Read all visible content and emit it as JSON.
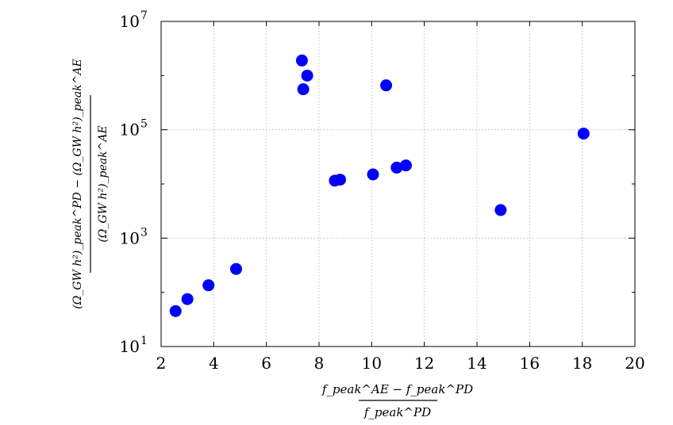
{
  "chart_data": {
    "type": "scatter",
    "title": "",
    "xlabel": {
      "numerator": "f_peak^AE − f_peak^PD",
      "denominator": "f_peak^PD"
    },
    "ylabel": {
      "numerator": "(Ω_GW h²)_peak^PD − (Ω_GW h²)_peak^AE",
      "denominator": "(Ω_GW h²)_peak^AE"
    },
    "xlim": [
      2,
      20
    ],
    "ylim": [
      10,
      10000000
    ],
    "yscale": "log",
    "grid": true,
    "x_ticks": [
      2,
      4,
      6,
      8,
      10,
      12,
      14,
      16,
      18,
      20
    ],
    "y_ticks": [
      {
        "base": "10",
        "exp": "1",
        "value": 10
      },
      {
        "base": "10",
        "exp": "3",
        "value": 1000
      },
      {
        "base": "10",
        "exp": "5",
        "value": 100000
      },
      {
        "base": "10",
        "exp": "7",
        "value": 10000000
      }
    ],
    "marker_color": "#0000ff",
    "points": [
      {
        "x": 2.55,
        "y": 45
      },
      {
        "x": 3.0,
        "y": 75
      },
      {
        "x": 3.8,
        "y": 135
      },
      {
        "x": 4.85,
        "y": 270
      },
      {
        "x": 7.35,
        "y": 1900000
      },
      {
        "x": 7.55,
        "y": 1000000
      },
      {
        "x": 7.4,
        "y": 560000
      },
      {
        "x": 10.55,
        "y": 660000
      },
      {
        "x": 8.6,
        "y": 11500
      },
      {
        "x": 8.8,
        "y": 12000
      },
      {
        "x": 10.05,
        "y": 15000
      },
      {
        "x": 10.95,
        "y": 20000
      },
      {
        "x": 11.3,
        "y": 22000
      },
      {
        "x": 14.9,
        "y": 3300
      },
      {
        "x": 18.05,
        "y": 85000
      }
    ]
  }
}
